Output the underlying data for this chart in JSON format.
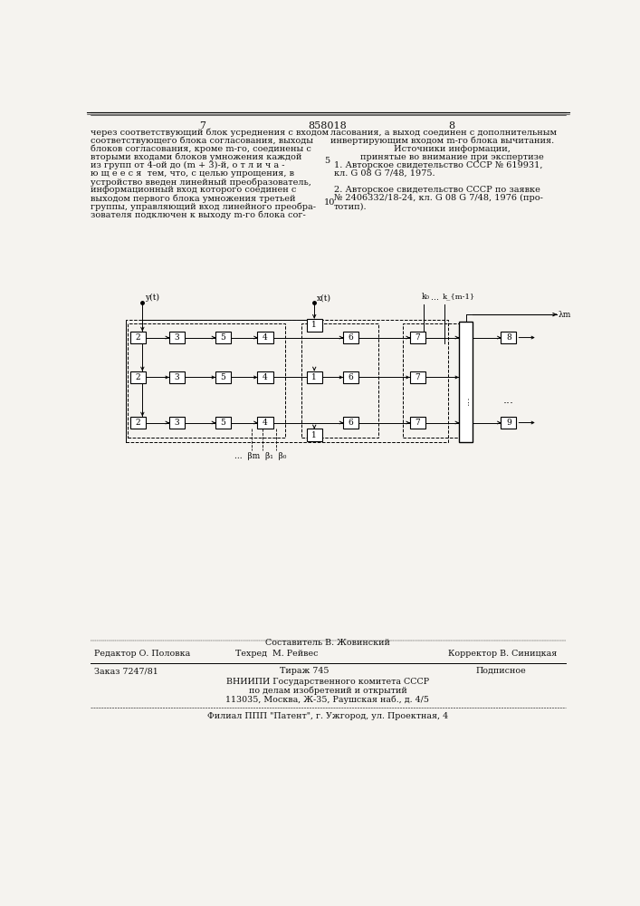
{
  "page_color": "#f5f3ef",
  "text_color": "#111111",
  "patent_number": "858018",
  "page_numbers": [
    "7",
    "8"
  ],
  "left_text": [
    "через соответствующий блок усреднения с входом",
    "соответствующего блока согласования, выходы",
    "блоков согласования, кроме m-го, соединены с",
    "вторыми входами блоков умножения каждой",
    "из групп от 4-ой до (m + 3)-й, о т л и ч а -",
    "ю щ е е с я  тем, что, с целью упрощения, в",
    "устройство введен линейный преобразователь,",
    "информационный вход которого соединен с",
    "выходом первого блока умножения третьей",
    "группы, управляющий вход линейного преобра-",
    "зователя подключен к выходу m-го блока сог-"
  ],
  "right_text_top": [
    "ласования, а выход соединен с дополнительным",
    "инвертирующим входом m-го блока вычитания."
  ],
  "sources_header": "Источники информации,",
  "sources_subheader": "принятые во внимание при экспертизе",
  "source1": "1. Авторское свидетельство СССР № 619931,",
  "source1b": "кл. G 08 G 7/48, 1975.",
  "source2": "2. Авторское свидетельство СССР по заявке",
  "source2b": "№ 2406332/18-24, кл. G 08 G 7/48, 1976 (про-",
  "source2c": "тотип).",
  "line_number5": "5",
  "line_number10": "10",
  "bottom_section": {
    "editor_label": "Редактор О. Половка",
    "composer_label": "Составитель В. Жовинский",
    "tech_label": "Техред  М. Рейвес",
    "corrector_label": "Корректор В. Синицкая",
    "order_label": "Заказ 7247/81",
    "circulation_label": "Тираж 745",
    "subscription_label": "Подписное",
    "org1": "ВНИИПИ Государственного комитета СССР",
    "org2": "по делам изобретений и открытий",
    "org3": "113035, Москва, Ж-35, Раушская наб., д. 4/5",
    "branch": "Филиал ППП \"Патент\", г. Ужгород, ул. Проектная, 4"
  }
}
